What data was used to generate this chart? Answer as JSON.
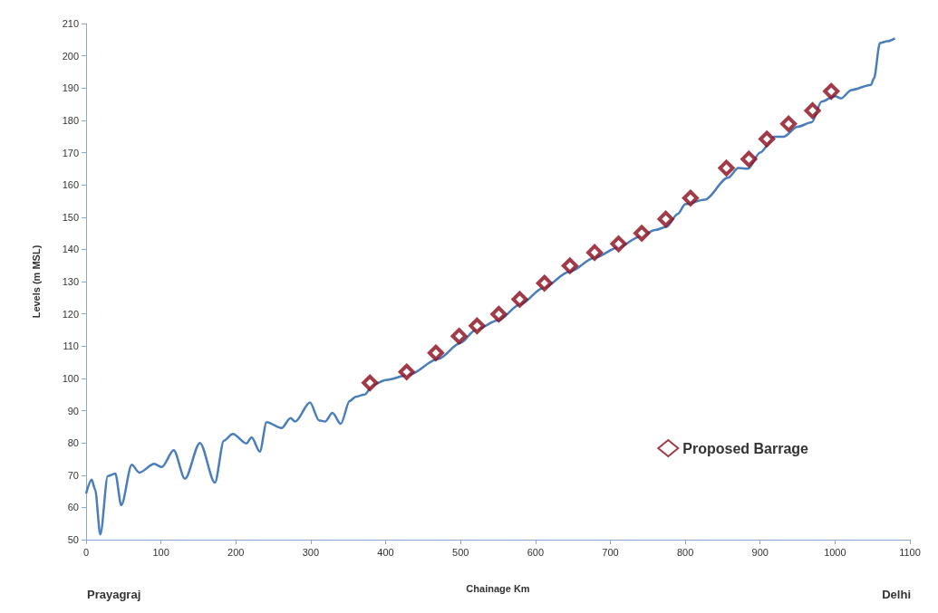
{
  "chart_data": {
    "type": "line",
    "xlabel": "Chainage Km",
    "ylabel": "Levels (m MSL)",
    "xlim": [
      0,
      1100
    ],
    "xticks": [
      0,
      100,
      200,
      300,
      400,
      500,
      600,
      700,
      800,
      900,
      1000,
      1100
    ],
    "ylim": [
      50,
      210
    ],
    "yticks": [
      50,
      60,
      70,
      80,
      90,
      100,
      110,
      120,
      130,
      140,
      150,
      160,
      170,
      180,
      190,
      200,
      210
    ],
    "grid": false,
    "legend": "right",
    "annotations": [
      "Prayagraj",
      "Delhi"
    ],
    "series": [
      {
        "marker": "none",
        "color": "#4a7ebb",
        "x": [
          0,
          7.5,
          12,
          19,
          29,
          39,
          47,
          61,
          71,
          91,
          101,
          117,
          132,
          152,
          172,
          184,
          196,
          214,
          221,
          232,
          241,
          261,
          273,
          279,
          299,
          311,
          319,
          329,
          340,
          352,
          360,
          372,
          383,
          400,
          430,
          470,
          500,
          520,
          550,
          580,
          610,
          645,
          680,
          710,
          740,
          760,
          775,
          790,
          800,
          826,
          857,
          871,
          884,
          900,
          919,
          931,
          950,
          969,
          982,
          1000,
          1008,
          1022,
          1048,
          1052,
          1060,
          1070,
          1080
        ],
        "values": [
          64.3,
          68.6,
          65.6,
          51.6,
          69.7,
          70.5,
          60.7,
          73.2,
          70.8,
          73.5,
          72.5,
          77.7,
          68.9,
          80,
          67.7,
          80.7,
          82.8,
          79.8,
          81.7,
          77.3,
          86.4,
          84.6,
          87.7,
          86.6,
          92.5,
          87,
          86.6,
          89.3,
          85.9,
          93,
          94.3,
          95,
          98,
          99.5,
          101,
          106,
          111,
          115,
          118,
          123,
          128,
          133,
          137.5,
          140.5,
          144,
          146,
          147,
          151,
          154,
          155.4,
          162.2,
          165.2,
          165,
          170,
          174.9,
          174.9,
          178,
          179.4,
          185.8,
          187.5,
          186.8,
          189.4,
          191,
          193,
          204,
          204.5,
          205.4
        ]
      },
      {
        "type": "scatter",
        "marker": "diamond",
        "name": "Proposed Barrage",
        "color": "#8b0a1a",
        "x": [
          379,
          428,
          467,
          498,
          522,
          551,
          579,
          612,
          646,
          679,
          711,
          742,
          774,
          807,
          855,
          885,
          909,
          938,
          970,
          995
        ],
        "values": [
          98.6,
          102,
          107.9,
          113.1,
          116.3,
          119.9,
          124.5,
          129.5,
          134.9,
          139,
          141.7,
          145,
          149.4,
          155.9,
          165.2,
          168,
          174.2,
          178.9,
          183,
          189
        ]
      }
    ]
  }
}
